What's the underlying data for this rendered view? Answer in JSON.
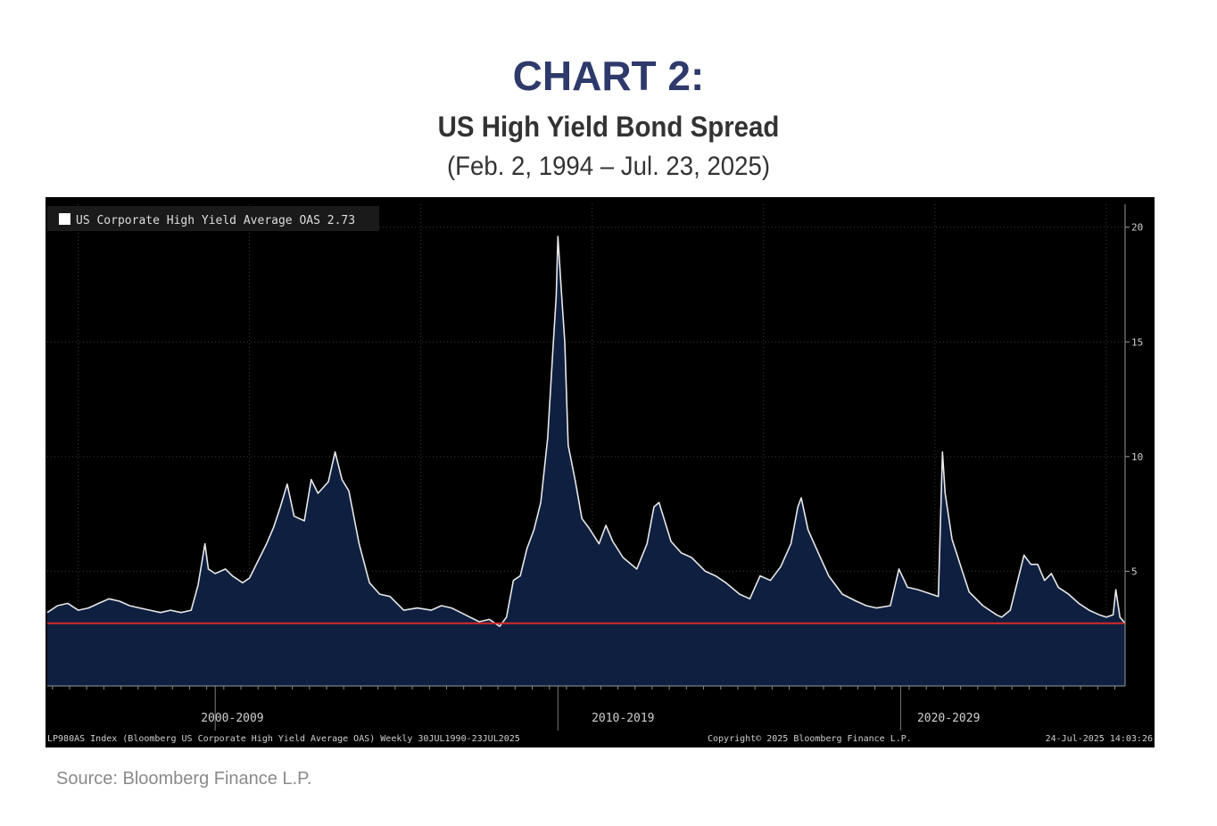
{
  "header": {
    "chart_number": "CHART 2:",
    "title": "US High Yield Bond Spread",
    "subtitle": "(Feb. 2, 1994 – Jul. 23, 2025)"
  },
  "chart_data": {
    "type": "area",
    "legend": {
      "label": "US Corporate High Yield Average OAS",
      "value": "2.73",
      "placement": "top-left"
    },
    "series": [
      {
        "name": "US Corporate High Yield Average OAS",
        "x": [
          1994.1,
          1994.4,
          1994.7,
          1995.0,
          1995.3,
          1995.6,
          1995.9,
          1996.2,
          1996.5,
          1996.8,
          1997.1,
          1997.4,
          1997.7,
          1998.0,
          1998.3,
          1998.5,
          1998.7,
          1998.8,
          1999.0,
          1999.3,
          1999.5,
          1999.8,
          2000.0,
          2000.3,
          2000.5,
          2000.7,
          2000.9,
          2001.1,
          2001.3,
          2001.6,
          2001.8,
          2002.0,
          2002.3,
          2002.5,
          2002.7,
          2002.9,
          2003.2,
          2003.5,
          2003.8,
          2004.1,
          2004.5,
          2004.9,
          2005.3,
          2005.6,
          2005.9,
          2006.3,
          2006.7,
          2007.0,
          2007.3,
          2007.5,
          2007.7,
          2007.9,
          2008.1,
          2008.3,
          2008.5,
          2008.7,
          2008.85,
          2008.95,
          2009.0,
          2009.1,
          2009.2,
          2009.3,
          2009.5,
          2009.7,
          2009.9,
          2010.2,
          2010.4,
          2010.6,
          2010.9,
          2011.3,
          2011.6,
          2011.8,
          2011.95,
          2012.3,
          2012.6,
          2012.9,
          2013.3,
          2013.6,
          2013.9,
          2014.3,
          2014.6,
          2014.9,
          2015.2,
          2015.5,
          2015.8,
          2016.0,
          2016.1,
          2016.3,
          2016.6,
          2016.9,
          2017.3,
          2017.7,
          2018.0,
          2018.3,
          2018.7,
          2018.95,
          2019.2,
          2019.5,
          2019.9,
          2020.1,
          2020.22,
          2020.3,
          2020.5,
          2020.8,
          2021.0,
          2021.4,
          2021.8,
          2021.95,
          2022.2,
          2022.45,
          2022.6,
          2022.8,
          2023.0,
          2023.2,
          2023.4,
          2023.6,
          2023.9,
          2024.2,
          2024.5,
          2024.8,
          2025.0,
          2025.2,
          2025.28,
          2025.4,
          2025.55
        ],
        "values": [
          3.2,
          3.5,
          3.6,
          3.3,
          3.4,
          3.6,
          3.8,
          3.7,
          3.5,
          3.4,
          3.3,
          3.2,
          3.3,
          3.2,
          3.3,
          4.4,
          6.2,
          5.1,
          4.9,
          5.1,
          4.8,
          4.5,
          4.7,
          5.6,
          6.2,
          6.9,
          7.8,
          8.8,
          7.4,
          7.2,
          9.0,
          8.4,
          8.9,
          10.2,
          9.0,
          8.5,
          6.2,
          4.5,
          4.0,
          3.9,
          3.3,
          3.4,
          3.3,
          3.5,
          3.4,
          3.1,
          2.8,
          2.9,
          2.6,
          3.0,
          4.6,
          4.8,
          6.0,
          6.8,
          8.0,
          10.8,
          14.6,
          17.0,
          19.6,
          17.2,
          15.0,
          10.5,
          9.0,
          7.3,
          6.9,
          6.2,
          7.0,
          6.3,
          5.6,
          5.1,
          6.2,
          7.8,
          8.0,
          6.3,
          5.8,
          5.6,
          5.0,
          4.8,
          4.5,
          4.0,
          3.8,
          4.8,
          4.6,
          5.2,
          6.2,
          7.8,
          8.2,
          6.8,
          5.8,
          4.8,
          4.0,
          3.7,
          3.5,
          3.4,
          3.5,
          5.1,
          4.3,
          4.2,
          4.0,
          3.9,
          10.2,
          8.4,
          6.4,
          5.0,
          4.1,
          3.5,
          3.1,
          3.0,
          3.3,
          4.8,
          5.7,
          5.3,
          5.3,
          4.6,
          4.9,
          4.3,
          4.0,
          3.6,
          3.3,
          3.1,
          3.0,
          3.1,
          4.2,
          3.0,
          2.73
        ]
      }
    ],
    "reference_line": {
      "value": 2.73
    },
    "ylim": [
      0,
      21
    ],
    "xlim": [
      1994.1,
      2025.55
    ],
    "y_ticks": [
      {
        "value": 5,
        "label": "5"
      },
      {
        "value": 10,
        "label": "10"
      },
      {
        "value": 15,
        "label": "15"
      },
      {
        "value": 20,
        "label": "20"
      }
    ],
    "x_ticks": [
      {
        "value": 1999.5,
        "label": "2000-2009"
      },
      {
        "value": 2010.9,
        "label": "2010-2019"
      },
      {
        "value": 2020.4,
        "label": "2020-2029"
      }
    ],
    "grid": true,
    "colors": {
      "background": "#000000",
      "line": "#e8e8e8",
      "fill": "#0e1f40",
      "reference": "#d42b2b",
      "axis_text": "#cfcfcf"
    },
    "footer": {
      "left": "LP980AS Index (Bloomberg US Corporate High Yield Average OAS)  Weekly 30JUL1990-23JUL2025",
      "middle": "Copyright© 2025 Bloomberg Finance L.P.",
      "right": "24-Jul-2025 14:03:26"
    }
  },
  "source": "Source: Bloomberg Finance L.P."
}
